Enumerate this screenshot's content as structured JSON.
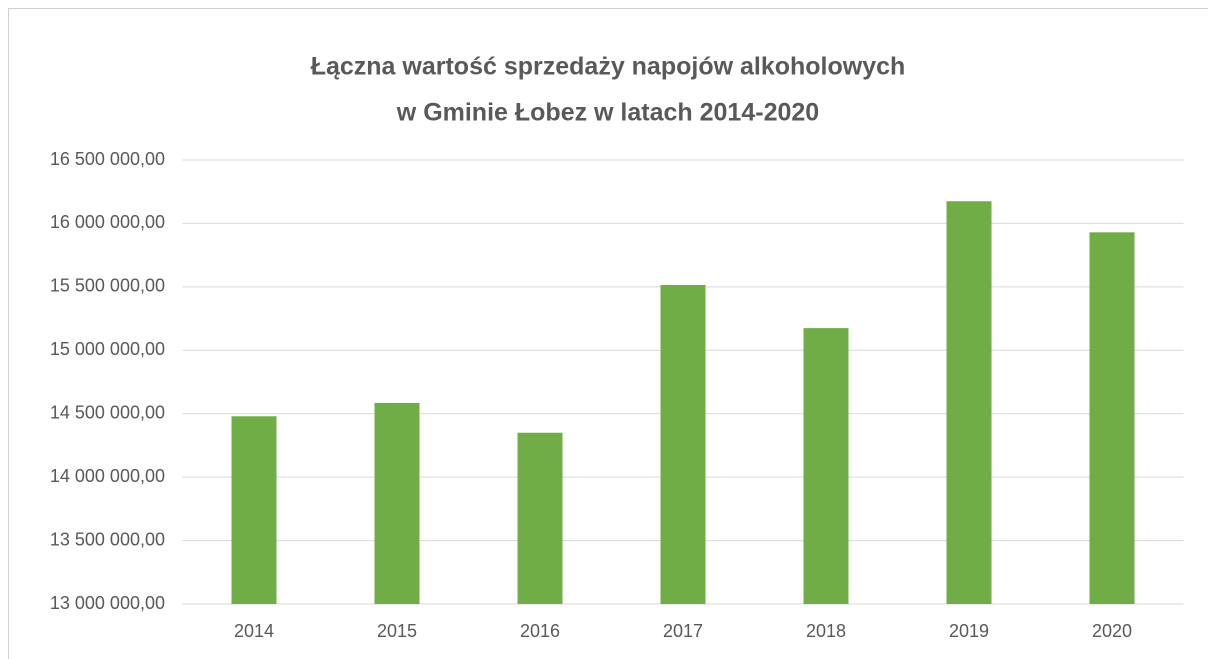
{
  "chart_data": {
    "type": "bar",
    "title": [
      "Łączna wartość sprzedaży napojów alkoholowych",
      "w Gminie Łobez w latach 2014-2020"
    ],
    "categories": [
      "2014",
      "2015",
      "2016",
      "2017",
      "2018",
      "2019",
      "2020"
    ],
    "values": [
      14480000,
      14585000,
      14350000,
      15515000,
      15175000,
      16175000,
      15930000
    ],
    "color": "#70ad47",
    "ylim": [
      13000000,
      16500000
    ],
    "yticks": [
      {
        "value": 13000000,
        "label": "13 000 000,00"
      },
      {
        "value": 13500000,
        "label": "13 500 000,00"
      },
      {
        "value": 14000000,
        "label": "14 000 000,00"
      },
      {
        "value": 14500000,
        "label": "14 500 000,00"
      },
      {
        "value": 15000000,
        "label": "15 000 000,00"
      },
      {
        "value": 15500000,
        "label": "15 500 000,00"
      },
      {
        "value": 16000000,
        "label": "16 000 000,00"
      },
      {
        "value": 16500000,
        "label": "16 500 000,00"
      }
    ],
    "grid": true
  }
}
